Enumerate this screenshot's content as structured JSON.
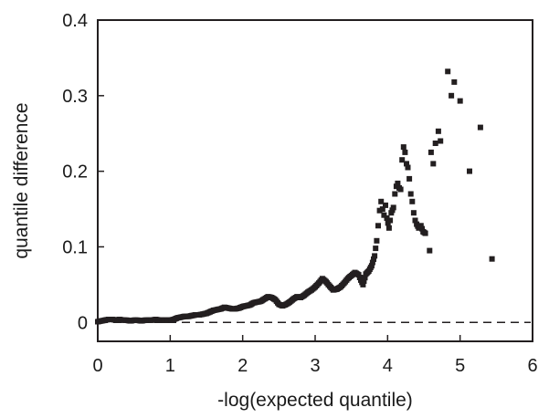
{
  "chart_data": {
    "type": "scatter",
    "title": "",
    "xlabel": "-log(expected quantile)",
    "ylabel": "quantile difference",
    "xlim": [
      0,
      6
    ],
    "ylim": [
      -0.025,
      0.4
    ],
    "xticks": [
      0,
      1,
      2,
      3,
      4,
      5,
      6
    ],
    "xtick_labels": [
      "0",
      "1",
      "2",
      "3",
      "4",
      "5",
      "6"
    ],
    "yticks": [
      0,
      0.1,
      0.2,
      0.3,
      0.4
    ],
    "ytick_labels": [
      "0",
      "0.1",
      "0.2",
      "0.3",
      "0.4"
    ],
    "grid": false,
    "legend": "none",
    "reference_line": {
      "y": 0,
      "style": "dashed"
    },
    "marker_color": "#231f20",
    "series": [
      {
        "points": [
          [
            0.0,
            0.001
          ],
          [
            0.05,
            0.002
          ],
          [
            0.1,
            0.003
          ],
          [
            0.15,
            0.004
          ],
          [
            0.2,
            0.004
          ],
          [
            0.25,
            0.003
          ],
          [
            0.3,
            0.004
          ],
          [
            0.35,
            0.003
          ],
          [
            0.4,
            0.003
          ],
          [
            0.45,
            0.002
          ],
          [
            0.5,
            0.003
          ],
          [
            0.55,
            0.003
          ],
          [
            0.6,
            0.002
          ],
          [
            0.65,
            0.003
          ],
          [
            0.7,
            0.003
          ],
          [
            0.75,
            0.003
          ],
          [
            0.8,
            0.004
          ],
          [
            0.85,
            0.003
          ],
          [
            0.9,
            0.003
          ],
          [
            0.95,
            0.003
          ],
          [
            1.0,
            0.003
          ],
          [
            1.05,
            0.004
          ],
          [
            1.1,
            0.006
          ],
          [
            1.15,
            0.007
          ],
          [
            1.2,
            0.008
          ],
          [
            1.25,
            0.008
          ],
          [
            1.3,
            0.009
          ],
          [
            1.35,
            0.01
          ],
          [
            1.4,
            0.01
          ],
          [
            1.45,
            0.011
          ],
          [
            1.5,
            0.012
          ],
          [
            1.55,
            0.014
          ],
          [
            1.6,
            0.016
          ],
          [
            1.65,
            0.017
          ],
          [
            1.7,
            0.018
          ],
          [
            1.75,
            0.02
          ],
          [
            1.8,
            0.019
          ],
          [
            1.85,
            0.018
          ],
          [
            1.9,
            0.018
          ],
          [
            1.95,
            0.019
          ],
          [
            2.0,
            0.021
          ],
          [
            2.05,
            0.022
          ],
          [
            2.1,
            0.023
          ],
          [
            2.15,
            0.026
          ],
          [
            2.2,
            0.027
          ],
          [
            2.25,
            0.028
          ],
          [
            2.3,
            0.031
          ],
          [
            2.35,
            0.034
          ],
          [
            2.4,
            0.033
          ],
          [
            2.45,
            0.03
          ],
          [
            2.5,
            0.024
          ],
          [
            2.55,
            0.022
          ],
          [
            2.6,
            0.024
          ],
          [
            2.65,
            0.027
          ],
          [
            2.7,
            0.031
          ],
          [
            2.75,
            0.034
          ],
          [
            2.8,
            0.033
          ],
          [
            2.85,
            0.036
          ],
          [
            2.9,
            0.04
          ],
          [
            2.95,
            0.043
          ],
          [
            3.0,
            0.047
          ],
          [
            3.05,
            0.052
          ],
          [
            3.1,
            0.058
          ],
          [
            3.15,
            0.054
          ],
          [
            3.2,
            0.048
          ],
          [
            3.25,
            0.043
          ],
          [
            3.3,
            0.044
          ],
          [
            3.35,
            0.047
          ],
          [
            3.4,
            0.052
          ],
          [
            3.45,
            0.058
          ],
          [
            3.5,
            0.062
          ],
          [
            3.55,
            0.066
          ],
          [
            3.6,
            0.063
          ],
          [
            3.63,
            0.056
          ],
          [
            3.66,
            0.05
          ],
          [
            3.7,
            0.064
          ],
          [
            3.74,
            0.068
          ],
          [
            3.78,
            0.075
          ],
          [
            3.82,
            0.088
          ],
          [
            3.85,
            0.108
          ],
          [
            3.87,
            0.128
          ],
          [
            3.89,
            0.148
          ],
          [
            3.91,
            0.16
          ],
          [
            3.93,
            0.15
          ],
          [
            3.95,
            0.142
          ],
          [
            3.97,
            0.155
          ],
          [
            3.99,
            0.138
          ],
          [
            4.02,
            0.125
          ],
          [
            4.05,
            0.145
          ],
          [
            4.08,
            0.152
          ],
          [
            4.1,
            0.17
          ],
          [
            4.12,
            0.18
          ],
          [
            4.14,
            0.184
          ],
          [
            4.16,
            0.178
          ],
          [
            4.18,
            0.176
          ],
          [
            4.2,
            0.215
          ],
          [
            4.22,
            0.232
          ],
          [
            4.24,
            0.225
          ],
          [
            4.26,
            0.21
          ],
          [
            4.28,
            0.205
          ],
          [
            4.3,
            0.19
          ],
          [
            4.32,
            0.17
          ],
          [
            4.34,
            0.16
          ],
          [
            4.36,
            0.145
          ],
          [
            4.38,
            0.135
          ],
          [
            4.4,
            0.13
          ],
          [
            4.43,
            0.125
          ],
          [
            4.46,
            0.128
          ],
          [
            4.49,
            0.12
          ],
          [
            4.52,
            0.118
          ],
          [
            4.58,
            0.095
          ],
          [
            4.6,
            0.225
          ],
          [
            4.63,
            0.21
          ],
          [
            4.66,
            0.237
          ],
          [
            4.7,
            0.253
          ],
          [
            4.73,
            0.24
          ],
          [
            4.83,
            0.332
          ],
          [
            4.88,
            0.3
          ],
          [
            4.92,
            0.318
          ],
          [
            5.0,
            0.293
          ],
          [
            5.13,
            0.2
          ],
          [
            5.28,
            0.258
          ],
          [
            5.44,
            0.084
          ]
        ]
      }
    ]
  }
}
